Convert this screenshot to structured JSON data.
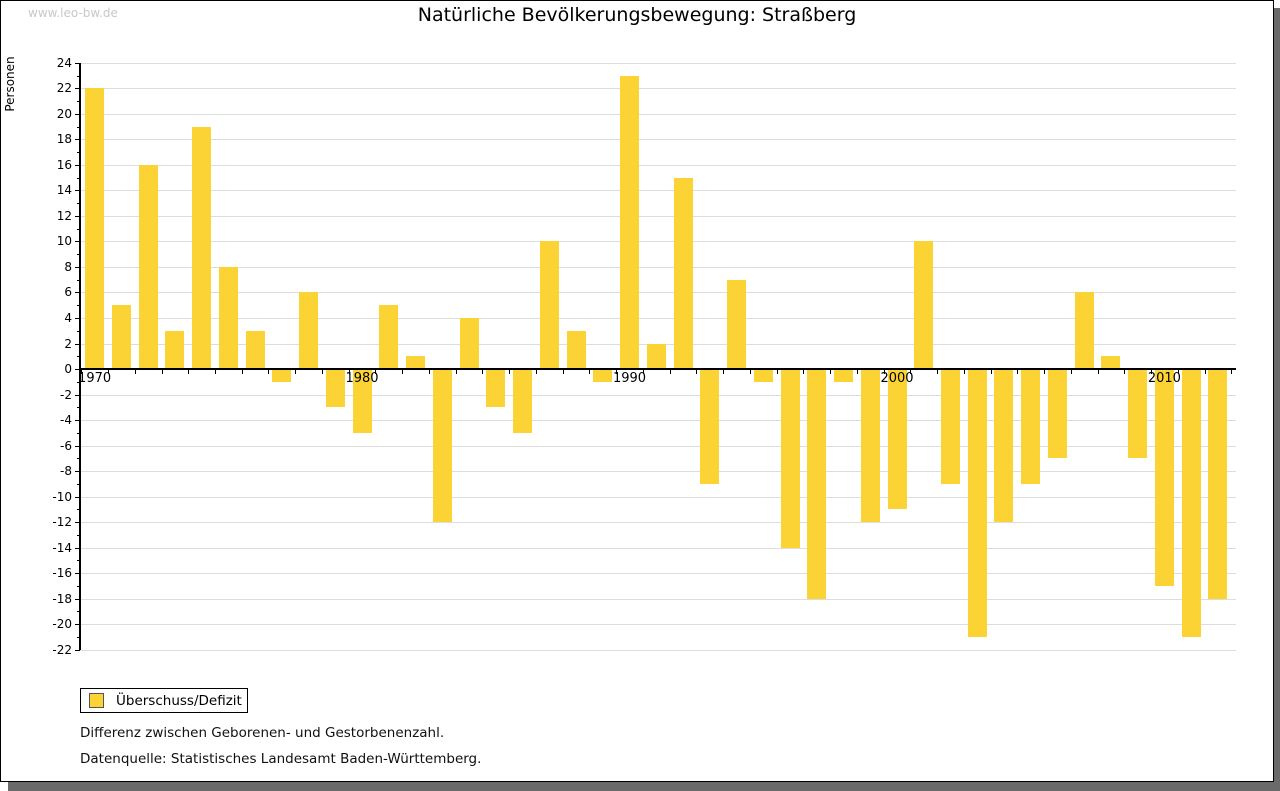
{
  "watermark": "www.leo-bw.de",
  "header": {
    "title": "Natürliche Bevölkerungsbewegung: Straßberg"
  },
  "legend": {
    "label": "Überschuss/Defizit"
  },
  "footnotes": [
    "Differenz zwischen Geborenen- und Gestorbenenzahl.",
    "Datenquelle: Statistisches Landesamt Baden-Württemberg."
  ],
  "colors": {
    "bar": "#FBD335",
    "gridline": "#DDDDDD",
    "axis": "#000000",
    "watermark": "#C8C8C8",
    "frame_shadow": "#6A6A6A"
  },
  "chart_data": {
    "type": "bar",
    "title": "Natürliche Bevölkerungsbewegung: Straßberg",
    "xlabel": "",
    "ylabel": "Personen",
    "ylim": [
      -22,
      24
    ],
    "ytick_step": 2,
    "grid": true,
    "legend_position": "bottom-left",
    "series_name": "Überschuss/Defizit",
    "categories": [
      1970,
      1971,
      1972,
      1973,
      1974,
      1975,
      1976,
      1977,
      1978,
      1979,
      1980,
      1981,
      1982,
      1983,
      1984,
      1985,
      1986,
      1987,
      1988,
      1989,
      1990,
      1991,
      1992,
      1993,
      1994,
      1995,
      1996,
      1997,
      1998,
      1999,
      2000,
      2001,
      2002,
      2003,
      2004,
      2005,
      2006,
      2007,
      2008,
      2009,
      2010,
      2011,
      2012
    ],
    "values": [
      22,
      5,
      16,
      3,
      19,
      8,
      3,
      -1,
      6,
      -3,
      -5,
      5,
      1,
      -12,
      4,
      -3,
      -5,
      10,
      3,
      -1,
      23,
      2,
      15,
      -9,
      7,
      -1,
      -14,
      -18,
      -1,
      -12,
      -11,
      10,
      -9,
      -21,
      -12,
      -9,
      -7,
      6,
      1,
      -7,
      -17,
      -21,
      -18
    ],
    "x_decade_labels": [
      "1970",
      "1980",
      "1990",
      "2000",
      "2010"
    ]
  }
}
